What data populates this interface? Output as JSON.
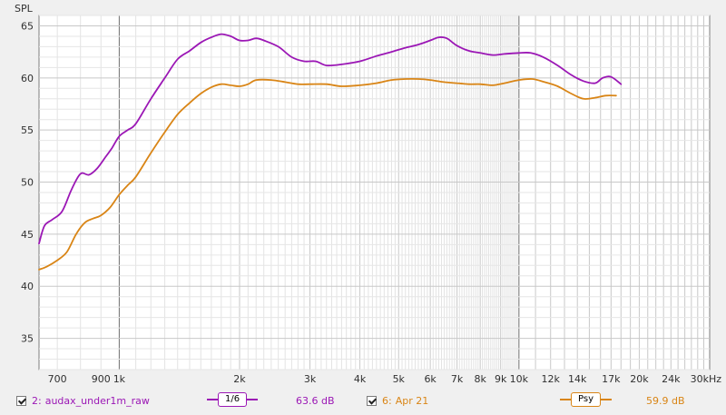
{
  "chart_data": {
    "type": "line",
    "title": "",
    "ylabel": "SPL",
    "xlabel": "",
    "xscale": "log",
    "xlim": [
      630,
      30000
    ],
    "ylim": [
      32,
      66
    ],
    "yticks": [
      35,
      40,
      45,
      50,
      55,
      60,
      65
    ],
    "xtick_labels": [
      {
        "value": 700,
        "label": "700"
      },
      {
        "value": 900,
        "label": "900"
      },
      {
        "value": 1000,
        "label": "1k"
      },
      {
        "value": 2000,
        "label": "2k"
      },
      {
        "value": 3000,
        "label": "3k"
      },
      {
        "value": 4000,
        "label": "4k"
      },
      {
        "value": 5000,
        "label": "5k"
      },
      {
        "value": 6000,
        "label": "6k"
      },
      {
        "value": 7000,
        "label": "7k"
      },
      {
        "value": 8000,
        "label": "8k"
      },
      {
        "value": 9000,
        "label": "9k"
      },
      {
        "value": 10000,
        "label": "10k"
      },
      {
        "value": 12000,
        "label": "12k"
      },
      {
        "value": 14000,
        "label": "14k"
      },
      {
        "value": 17000,
        "label": "17k"
      },
      {
        "value": 20000,
        "label": "20k"
      },
      {
        "value": 24000,
        "label": "24k"
      },
      {
        "value": 30000,
        "label": "30kHz"
      }
    ],
    "major_gridlines_x": [
      1000,
      10000
    ],
    "grid": true,
    "series": [
      {
        "name": "audax_under1m_raw",
        "index_label": "2:",
        "color": "#9b17b5",
        "smoothing": "1/6",
        "level": "63.6 dB",
        "x": [
          630,
          650,
          680,
          720,
          760,
          800,
          840,
          880,
          920,
          960,
          1000,
          1050,
          1100,
          1200,
          1300,
          1400,
          1500,
          1600,
          1700,
          1800,
          1900,
          2000,
          2100,
          2200,
          2300,
          2500,
          2700,
          2900,
          3100,
          3300,
          3600,
          4000,
          4400,
          4800,
          5200,
          5600,
          6000,
          6300,
          6600,
          7000,
          7500,
          8000,
          8600,
          9200,
          10000,
          10700,
          11500,
          12500,
          13500,
          14500,
          15500,
          16200,
          17000,
          18000
        ],
        "y": [
          44.1,
          45.8,
          46.4,
          47.2,
          49.3,
          50.8,
          50.7,
          51.3,
          52.3,
          53.3,
          54.4,
          55.0,
          55.6,
          58.0,
          60.0,
          61.8,
          62.6,
          63.4,
          63.9,
          64.2,
          64.0,
          63.6,
          63.6,
          63.8,
          63.6,
          63.0,
          62.0,
          61.6,
          61.6,
          61.2,
          61.3,
          61.6,
          62.1,
          62.5,
          62.9,
          63.2,
          63.6,
          63.9,
          63.8,
          63.1,
          62.6,
          62.4,
          62.2,
          62.3,
          62.4,
          62.4,
          62.0,
          61.2,
          60.3,
          59.7,
          59.5,
          60.0,
          60.1,
          59.4
        ]
      },
      {
        "name": "Apr 21",
        "index_label": "6:",
        "color": "#d98516",
        "smoothing": "Psy",
        "level": "59.9 dB",
        "x": [
          630,
          660,
          700,
          740,
          780,
          820,
          860,
          900,
          950,
          1000,
          1050,
          1100,
          1200,
          1300,
          1400,
          1500,
          1600,
          1700,
          1800,
          1900,
          2000,
          2100,
          2200,
          2400,
          2600,
          2800,
          3000,
          3300,
          3600,
          4000,
          4400,
          4800,
          5200,
          5600,
          6000,
          6500,
          7000,
          7500,
          8000,
          8600,
          9200,
          10000,
          10800,
          11600,
          12500,
          13500,
          14500,
          15500,
          16500,
          17500
        ],
        "y": [
          41.6,
          41.9,
          42.5,
          43.3,
          45.0,
          46.1,
          46.5,
          46.8,
          47.6,
          48.8,
          49.7,
          50.5,
          52.8,
          54.8,
          56.5,
          57.6,
          58.5,
          59.1,
          59.4,
          59.3,
          59.2,
          59.4,
          59.8,
          59.8,
          59.6,
          59.4,
          59.4,
          59.4,
          59.2,
          59.3,
          59.5,
          59.8,
          59.9,
          59.9,
          59.8,
          59.6,
          59.5,
          59.4,
          59.4,
          59.3,
          59.5,
          59.8,
          59.9,
          59.6,
          59.2,
          58.5,
          58.0,
          58.1,
          58.3,
          58.3
        ]
      }
    ]
  }
}
